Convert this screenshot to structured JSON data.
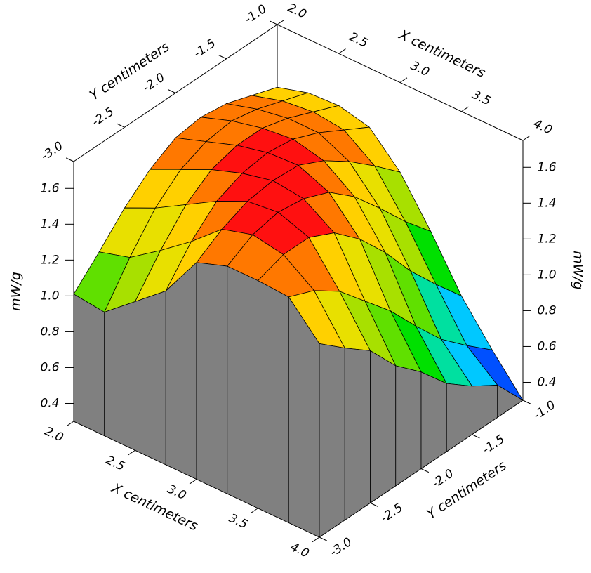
{
  "chart_data": {
    "type": "surface",
    "x": [
      2.0,
      2.25,
      2.5,
      2.75,
      3.0,
      3.25,
      3.5,
      3.75,
      4.0
    ],
    "y": [
      -3.0,
      -2.75,
      -2.5,
      -2.25,
      -2.0,
      -1.75,
      -1.5,
      -1.25,
      -1.0
    ],
    "z": [
      [
        1.01,
        0.99,
        1.13,
        1.27,
        1.51,
        1.57,
        1.57,
        1.56,
        1.38
      ],
      [
        1.15,
        1.2,
        1.32,
        1.45,
        1.6,
        1.65,
        1.62,
        1.5,
        1.26
      ],
      [
        1.3,
        1.38,
        1.48,
        1.58,
        1.66,
        1.68,
        1.62,
        1.4,
        1.15
      ],
      [
        1.42,
        1.5,
        1.58,
        1.64,
        1.68,
        1.66,
        1.55,
        1.25,
        0.97
      ],
      [
        1.5,
        1.56,
        1.62,
        1.66,
        1.67,
        1.6,
        1.42,
        1.1,
        0.84
      ],
      [
        1.52,
        1.58,
        1.62,
        1.64,
        1.6,
        1.48,
        1.25,
        0.92,
        0.68
      ],
      [
        1.5,
        1.55,
        1.58,
        1.58,
        1.5,
        1.32,
        1.05,
        0.75,
        0.57
      ],
      [
        1.45,
        1.5,
        1.52,
        1.5,
        1.38,
        1.15,
        0.88,
        0.62,
        0.48
      ],
      [
        1.4,
        1.45,
        1.46,
        1.42,
        1.25,
        1.0,
        0.72,
        0.5,
        0.3
      ]
    ],
    "xlim": [
      2.0,
      4.0
    ],
    "ylim": [
      -3.0,
      -1.0
    ],
    "zlim": [
      0.3,
      1.75
    ],
    "xticks": [
      {
        "value": 2,
        "label": "2.0"
      },
      2.5,
      {
        "value": 3,
        "label": "3.0"
      },
      3.5,
      {
        "value": 4,
        "label": "4.0"
      }
    ],
    "yticks": [
      {
        "value": -3,
        "label": "-3.0"
      },
      -2.5,
      {
        "value": -2,
        "label": "-2.0"
      },
      -1.5,
      {
        "value": -1,
        "label": "-1.0"
      }
    ],
    "zticks": [
      0.4,
      0.6,
      0.8,
      {
        "value": 1,
        "label": "1.0"
      },
      1.2,
      1.4,
      1.6
    ],
    "xlabel": "X centimeters",
    "ylabel": "Y centimeters",
    "zlabel": "mW/g",
    "wall_color": "#808080",
    "colormap": [
      "#0000c8",
      "#0050ff",
      "#00c8ff",
      "#00e0a0",
      "#00e000",
      "#60e000",
      "#a8e000",
      "#e8e000",
      "#ffd000",
      "#ff7800",
      "#ff1010"
    ]
  }
}
